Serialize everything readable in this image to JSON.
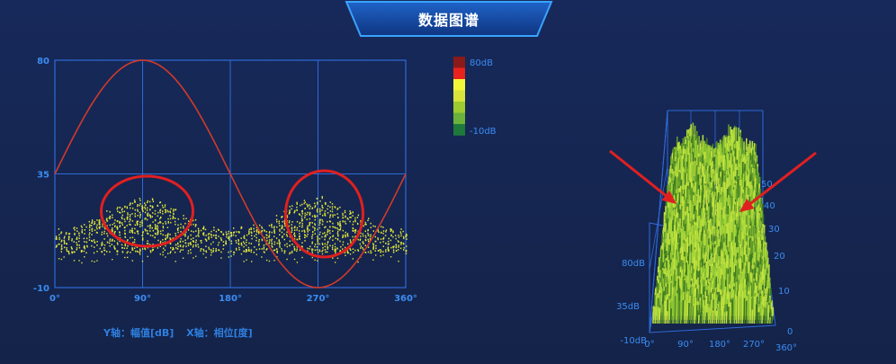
{
  "header": {
    "title": "数据图谱"
  },
  "colors": {
    "background": "#162551",
    "grid": "#2f6ad6",
    "axis_text": "#3b8cf2",
    "sine": "#d23a2a",
    "scatter": "#e0e63a",
    "arrow": "#e02020",
    "annotation_circle": "#e02020"
  },
  "chart_data": [
    {
      "type": "scatter",
      "x_ticks": [
        "0°",
        "90°",
        "180°",
        "270°",
        "360°"
      ],
      "y_ticks": [
        "80",
        "35",
        "-10"
      ],
      "xlim": [
        0,
        360
      ],
      "ylim": [
        -10,
        80
      ],
      "grid": true,
      "sine_reference": {
        "amplitude_range": [
          -10,
          80
        ],
        "peak_at_phase": 90
      },
      "point_cloud": {
        "y_range": [
          0,
          24
        ],
        "dense_clusters_at_phase": [
          90,
          270
        ]
      },
      "annotations": [
        "circle@90°",
        "circle@270°"
      ],
      "colorbar": {
        "max_label": "80dB",
        "min_label": "-10dB",
        "colors": [
          "#8b1a1a",
          "#e8231d",
          "#f4f63a",
          "#d8e33c",
          "#9ecb2f",
          "#6ab23a",
          "#1e7a3a"
        ]
      },
      "axis_caption": {
        "y": "Y轴：幅值[dB]",
        "x": "X轴：相位[度]"
      }
    },
    {
      "type": "3d-bar",
      "x_ticks": [
        "0°",
        "90°",
        "180°",
        "270°",
        "360°"
      ],
      "z_ticks": [
        "80dB",
        "35dB",
        "-10dB"
      ],
      "depth_ticks": [
        "0",
        "10",
        "20",
        "30",
        "40",
        "50"
      ],
      "annotations": [
        "arrow-left",
        "arrow-right"
      ]
    }
  ]
}
